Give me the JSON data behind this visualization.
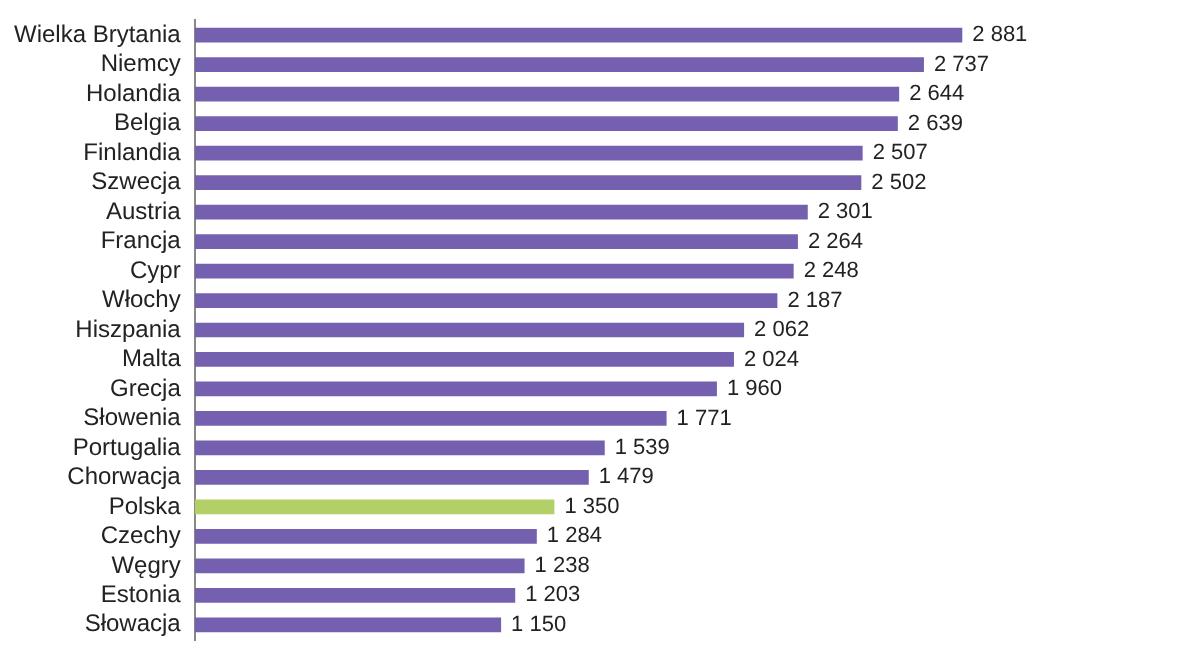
{
  "chart_data": {
    "type": "bar",
    "orientation": "horizontal",
    "categories": [
      "Wielka Brytania",
      "Niemcy",
      "Holandia",
      "Belgia",
      "Finlandia",
      "Szwecja",
      "Austria",
      "Francja",
      "Cypr",
      "Włochy",
      "Hiszpania",
      "Malta",
      "Grecja",
      "Słowenia",
      "Portugalia",
      "Chorwacja",
      "Polska",
      "Czechy",
      "Węgry",
      "Estonia",
      "Słowacja"
    ],
    "values": [
      2881,
      2737,
      2644,
      2639,
      2507,
      2502,
      2301,
      2264,
      2248,
      2187,
      2062,
      2024,
      1960,
      1771,
      1539,
      1479,
      1350,
      1284,
      1238,
      1203,
      1150
    ],
    "colors": [
      "#7560b0",
      "#7560b0",
      "#7560b0",
      "#7560b0",
      "#7560b0",
      "#7560b0",
      "#7560b0",
      "#7560b0",
      "#7560b0",
      "#7560b0",
      "#7560b0",
      "#7560b0",
      "#7560b0",
      "#7560b0",
      "#7560b0",
      "#7560b0",
      "#b3cf68",
      "#7560b0",
      "#7560b0",
      "#7560b0",
      "#7560b0"
    ],
    "value_labels": [
      "2 881",
      "2 737",
      "2 644",
      "2 639",
      "2 507",
      "2 502",
      "2 301",
      "2 264",
      "2 248",
      "2 187",
      "2 062",
      "2 024",
      "1 960",
      "1 771",
      "1 539",
      "1 479",
      "1 350",
      "1 284",
      "1 238",
      "1 203",
      "1 150"
    ],
    "tick_labels": "y"
  }
}
